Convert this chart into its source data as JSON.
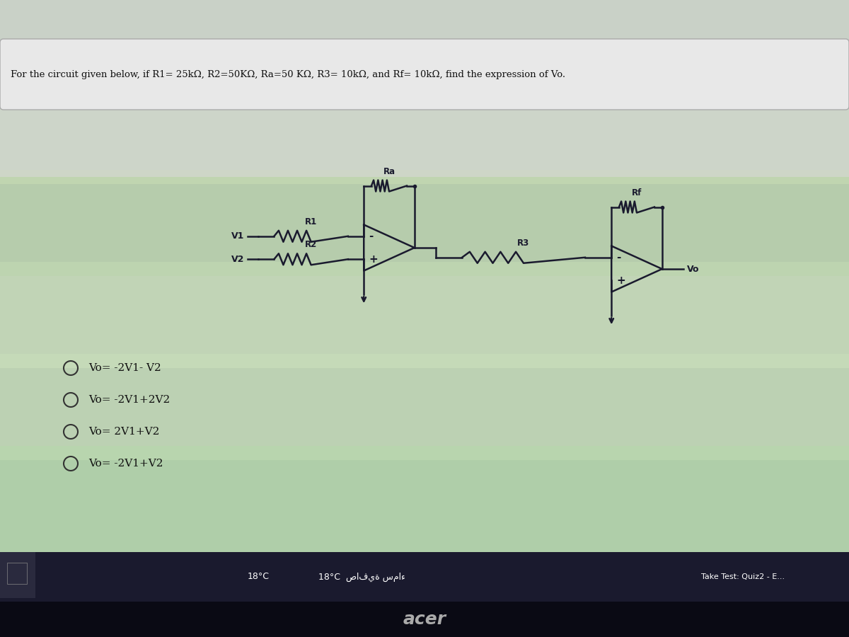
{
  "title": "For the circuit given below, if R1= 25kΩ, R2=50KΩ, Ra=50 KΩ, R3= 10kΩ, and Rf= 10kΩ, find the expression of Vo.",
  "bg_color": "#c8c8c8",
  "circuit_color": "#1a1a2e",
  "answer_options": [
    "Vo= -2V1- V2",
    "Vo= -2V1+2V2",
    "Vo= 2V1+V2",
    "Vo= -2V1+V2"
  ],
  "taskbar_color": "#1e1e2e",
  "taskbar_text": "18°C  صافية سماء",
  "taskbar_right": "Take Test: Quiz2 - E...",
  "acer_text": "acer",
  "screen_bg_top": "#b0b0b0",
  "screen_bg_bottom": "#2a2a2a"
}
